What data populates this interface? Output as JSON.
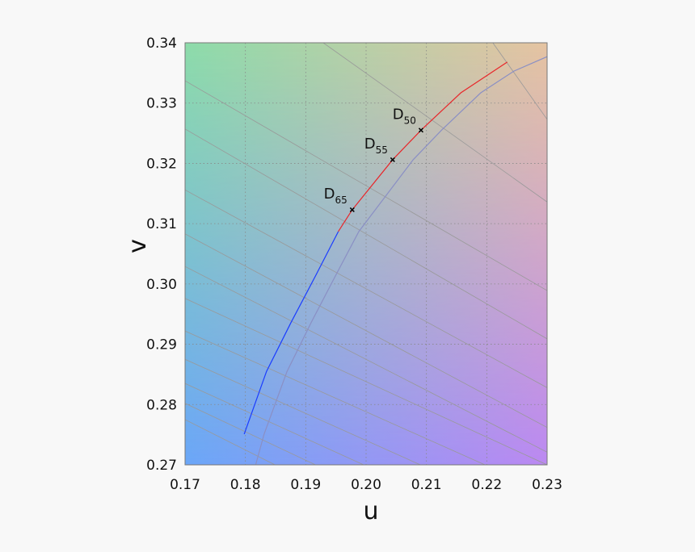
{
  "chart_data": {
    "type": "line",
    "xlabel": "u",
    "ylabel": "v",
    "xlim": [
      0.17,
      0.23
    ],
    "ylim": [
      0.27,
      0.34
    ],
    "xticks": [
      0.17,
      0.18,
      0.19,
      {
        "value": 0.2,
        "label": "0.20"
      },
      0.21,
      0.22,
      0.23
    ],
    "yticks": [
      0.27,
      0.28,
      0.29,
      {
        "value": 0.3,
        "label": "0.30"
      },
      0.31,
      0.32,
      0.33,
      0.34
    ],
    "grid": true,
    "series": [
      {
        "color": "#999999",
        "x": [
          0.221,
          0.23
        ],
        "values": [
          0.34,
          0.3273
        ]
      },
      {
        "color": "#999999",
        "x": [
          0.1929,
          0.23
        ],
        "values": [
          0.34,
          0.3136
        ]
      },
      {
        "color": "#999999",
        "x": [
          0.17,
          0.23
        ],
        "values": [
          0.3337,
          0.2989
        ]
      },
      {
        "color": "#999999",
        "x": [
          0.17,
          0.23
        ],
        "values": [
          0.3257,
          0.2909
        ]
      },
      {
        "color": "#999999",
        "x": [
          0.17,
          0.23
        ],
        "values": [
          0.3156,
          0.2828
        ]
      },
      {
        "color": "#999999",
        "x": [
          0.17,
          0.23
        ],
        "values": [
          0.3083,
          0.2762
        ]
      },
      {
        "color": "#999999",
        "x": [
          0.17,
          0.23
        ],
        "values": [
          0.3029,
          0.2721
        ]
      },
      {
        "color": "#999999",
        "x": [
          0.17,
          0.23
        ],
        "values": [
          0.2976,
          0.27
        ]
      },
      {
        "color": "#999999",
        "x": [
          0.17,
          0.2197
        ],
        "values": [
          0.2922,
          0.27
        ]
      },
      {
        "color": "#999999",
        "x": [
          0.17,
          0.209
        ],
        "values": [
          0.2875,
          0.27
        ]
      },
      {
        "color": "#999999",
        "x": [
          0.17,
          0.1996
        ],
        "values": [
          0.2835,
          0.27
        ]
      },
      {
        "color": "#999999",
        "x": [
          0.17,
          0.1916
        ],
        "values": [
          0.2802,
          0.27
        ]
      },
      {
        "color": "#999999",
        "x": [
          0.17,
          0.1849
        ],
        "values": [
          0.2775,
          0.27
        ]
      },
      {
        "color": "#8a8fc4",
        "x": [
          0.1817,
          0.1831,
          0.1869,
          0.1909,
          0.1949,
          0.1988,
          0.2078,
          0.2125,
          0.219,
          0.2245,
          0.23
        ],
        "values": [
          0.27,
          0.2751,
          0.2855,
          0.2936,
          0.3013,
          0.3087,
          0.3206,
          0.3255,
          0.3317,
          0.3353,
          0.3377
        ]
      },
      {
        "color": "#1a3cff",
        "x": [
          0.1798,
          0.1835,
          0.1875,
          0.1916,
          0.1954
        ],
        "values": [
          0.2751,
          0.2855,
          0.2935,
          0.3013,
          0.3087
        ]
      },
      {
        "color": "#e8262a",
        "x": [
          0.1954,
          0.1977,
          0.2044,
          0.2091,
          0.2157,
          0.2234
        ],
        "values": [
          0.3087,
          0.3123,
          0.3206,
          0.3255,
          0.3317,
          0.3368
        ]
      }
    ],
    "annotations": [
      {
        "text": "D",
        "sub": "65",
        "x": 0.1977,
        "y": 0.3123
      },
      {
        "text": "D",
        "sub": "55",
        "x": 0.2044,
        "y": 0.3206
      },
      {
        "text": "D",
        "sub": "50",
        "x": 0.2091,
        "y": 0.3255
      }
    ]
  }
}
